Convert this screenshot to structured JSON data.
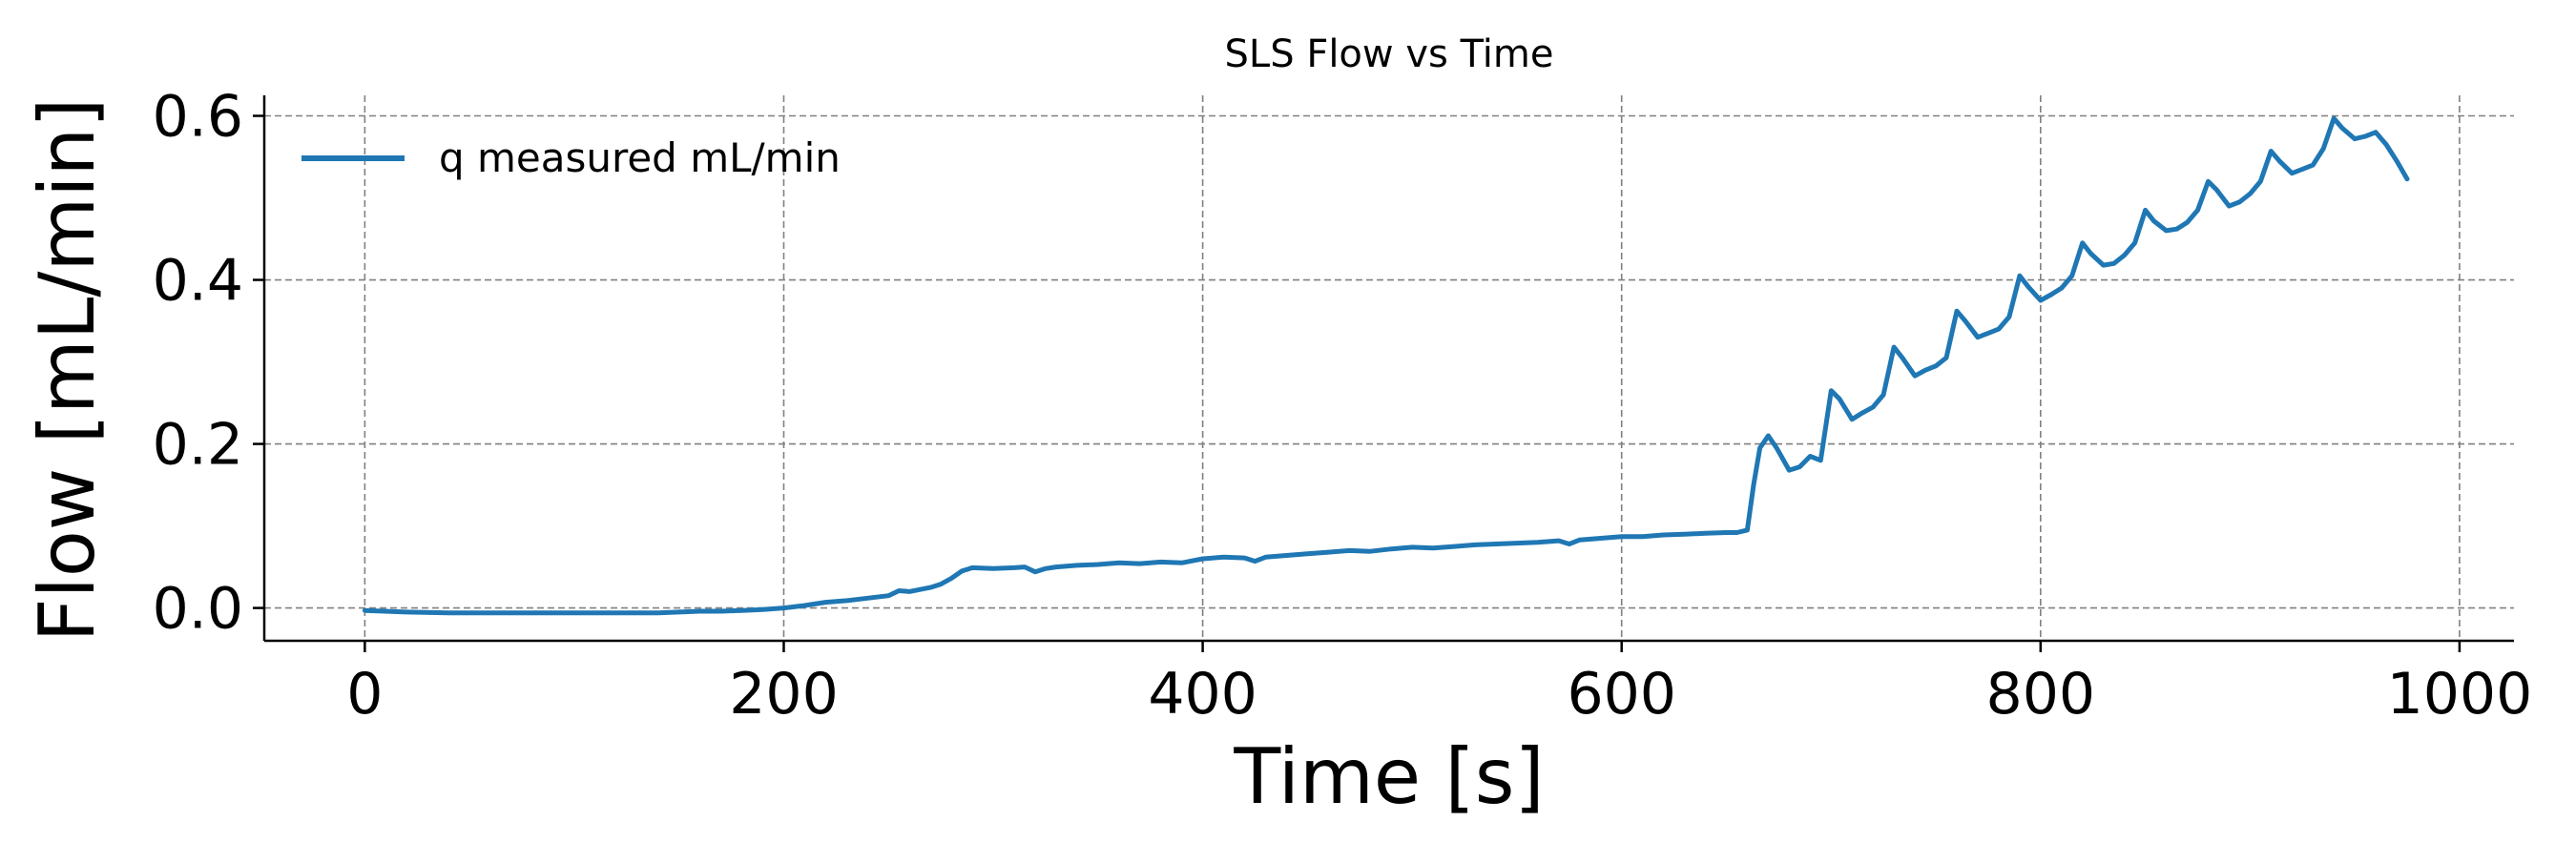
{
  "chart_data": {
    "type": "line",
    "title": "SLS Flow vs Time",
    "xlabel": "Time [s]",
    "ylabel": "Flow [mL/min]",
    "xlim": [
      -48,
      1026
    ],
    "ylim": [
      -0.04,
      0.625
    ],
    "xticks": [
      0,
      200,
      400,
      600,
      800,
      1000
    ],
    "yticks": [
      0.0,
      0.2,
      0.4,
      0.6
    ],
    "xtick_labels": [
      "0",
      "200",
      "400",
      "600",
      "800",
      "1000"
    ],
    "ytick_labels": [
      "0.0",
      "0.2",
      "0.4",
      "0.6"
    ],
    "grid": true,
    "legend_position": "upper-left",
    "colors": {
      "series": "#1f77b4",
      "grid": "#808080",
      "axis": "#000000"
    },
    "series": [
      {
        "name": "q measured mL/min",
        "x": [
          0,
          20,
          40,
          60,
          80,
          100,
          120,
          140,
          160,
          170,
          180,
          190,
          200,
          210,
          220,
          230,
          240,
          250,
          255,
          260,
          270,
          275,
          280,
          285,
          290,
          300,
          310,
          315,
          320,
          325,
          330,
          340,
          350,
          360,
          370,
          380,
          390,
          400,
          410,
          420,
          425,
          430,
          440,
          450,
          460,
          470,
          480,
          490,
          500,
          510,
          520,
          530,
          540,
          550,
          560,
          570,
          575,
          580,
          590,
          600,
          610,
          620,
          630,
          640,
          650,
          655,
          660,
          663,
          666,
          670,
          674,
          680,
          685,
          690,
          695,
          700,
          704,
          710,
          715,
          720,
          725,
          730,
          734,
          740,
          745,
          750,
          755,
          760,
          764,
          770,
          775,
          780,
          785,
          790,
          794,
          800,
          805,
          810,
          815,
          820,
          824,
          830,
          835,
          840,
          845,
          850,
          854,
          860,
          865,
          870,
          875,
          880,
          884,
          890,
          895,
          900,
          905,
          910,
          914,
          920,
          925,
          930,
          935,
          940,
          944,
          950,
          955,
          960,
          965,
          970,
          975
        ],
        "y": [
          -0.003,
          -0.005,
          -0.006,
          -0.006,
          -0.006,
          -0.006,
          -0.006,
          -0.006,
          -0.004,
          -0.004,
          -0.003,
          -0.002,
          0.0,
          0.003,
          0.007,
          0.009,
          0.012,
          0.015,
          0.021,
          0.02,
          0.025,
          0.029,
          0.036,
          0.045,
          0.049,
          0.048,
          0.049,
          0.05,
          0.044,
          0.048,
          0.05,
          0.052,
          0.053,
          0.055,
          0.054,
          0.056,
          0.055,
          0.06,
          0.062,
          0.061,
          0.057,
          0.062,
          0.064,
          0.066,
          0.068,
          0.07,
          0.069,
          0.072,
          0.074,
          0.073,
          0.075,
          0.077,
          0.078,
          0.079,
          0.08,
          0.082,
          0.078,
          0.083,
          0.085,
          0.087,
          0.087,
          0.089,
          0.09,
          0.091,
          0.092,
          0.092,
          0.095,
          0.15,
          0.195,
          0.21,
          0.195,
          0.168,
          0.172,
          0.185,
          0.18,
          0.265,
          0.255,
          0.23,
          0.238,
          0.245,
          0.26,
          0.318,
          0.305,
          0.283,
          0.29,
          0.295,
          0.305,
          0.362,
          0.35,
          0.33,
          0.335,
          0.34,
          0.355,
          0.405,
          0.392,
          0.375,
          0.382,
          0.39,
          0.405,
          0.445,
          0.432,
          0.418,
          0.42,
          0.43,
          0.445,
          0.485,
          0.472,
          0.46,
          0.462,
          0.47,
          0.485,
          0.52,
          0.51,
          0.49,
          0.495,
          0.505,
          0.52,
          0.557,
          0.545,
          0.53,
          0.535,
          0.54,
          0.56,
          0.597,
          0.585,
          0.572,
          0.575,
          0.58,
          0.565,
          0.545,
          0.523
        ]
      }
    ]
  }
}
